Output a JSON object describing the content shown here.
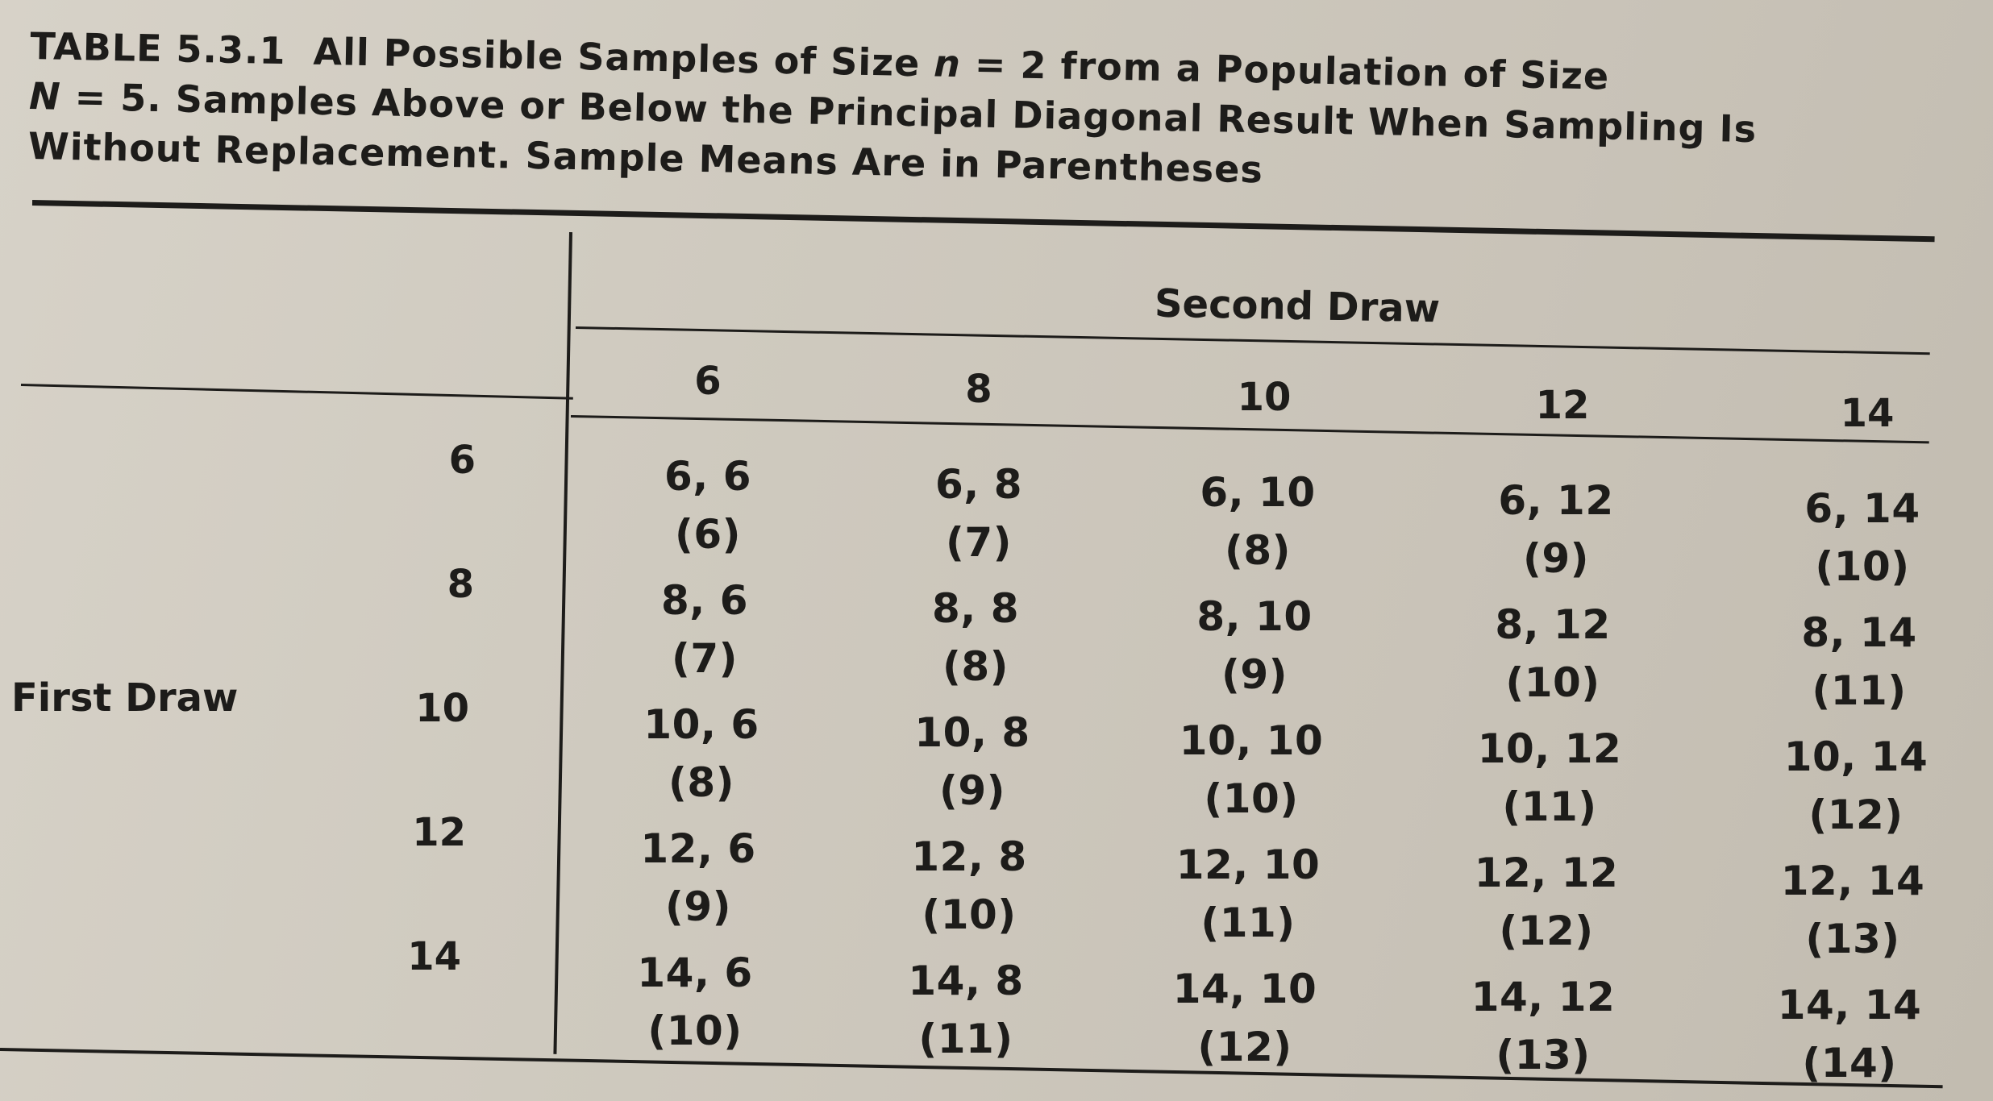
{
  "caption": {
    "label": "TABLE 5.3.1",
    "line1_rest": "All Possible Samples of Size",
    "n_symbol": "n",
    "n_value": "= 2 from a Population of Size",
    "N_symbol": "N",
    "line2_rest": "= 5. Samples Above or Below the Principal Diagonal Result When Sampling Is",
    "line3": "Without Replacement. Sample Means Are in Parentheses"
  },
  "table": {
    "column_group_header": "Second Draw",
    "row_group_header": "First Draw",
    "columns": [
      "6",
      "8",
      "10",
      "12",
      "14"
    ],
    "rows": [
      {
        "label": "6",
        "cells": [
          {
            "pair": "6, 6",
            "mean": "(6)"
          },
          {
            "pair": "6, 8",
            "mean": "(7)"
          },
          {
            "pair": "6, 10",
            "mean": "(8)"
          },
          {
            "pair": "6, 12",
            "mean": "(9)"
          },
          {
            "pair": "6, 14",
            "mean": "(10)"
          }
        ]
      },
      {
        "label": "8",
        "cells": [
          {
            "pair": "8, 6",
            "mean": "(7)"
          },
          {
            "pair": "8, 8",
            "mean": "(8)"
          },
          {
            "pair": "8, 10",
            "mean": "(9)"
          },
          {
            "pair": "8, 12",
            "mean": "(10)"
          },
          {
            "pair": "8, 14",
            "mean": "(11)"
          }
        ]
      },
      {
        "label": "10",
        "cells": [
          {
            "pair": "10, 6",
            "mean": "(8)"
          },
          {
            "pair": "10, 8",
            "mean": "(9)"
          },
          {
            "pair": "10, 10",
            "mean": "(10)"
          },
          {
            "pair": "10, 12",
            "mean": "(11)"
          },
          {
            "pair": "10, 14",
            "mean": "(12)"
          }
        ]
      },
      {
        "label": "12",
        "cells": [
          {
            "pair": "12, 6",
            "mean": "(9)"
          },
          {
            "pair": "12, 8",
            "mean": "(10)"
          },
          {
            "pair": "12, 10",
            "mean": "(11)"
          },
          {
            "pair": "12, 12",
            "mean": "(12)"
          },
          {
            "pair": "12, 14",
            "mean": "(13)"
          }
        ]
      },
      {
        "label": "14",
        "cells": [
          {
            "pair": "14, 6",
            "mean": "(10)"
          },
          {
            "pair": "14, 8",
            "mean": "(11)"
          },
          {
            "pair": "14, 10",
            "mean": "(12)"
          },
          {
            "pair": "14, 12",
            "mean": "(13)"
          },
          {
            "pair": "14, 14",
            "mean": "(14)"
          }
        ]
      }
    ]
  }
}
